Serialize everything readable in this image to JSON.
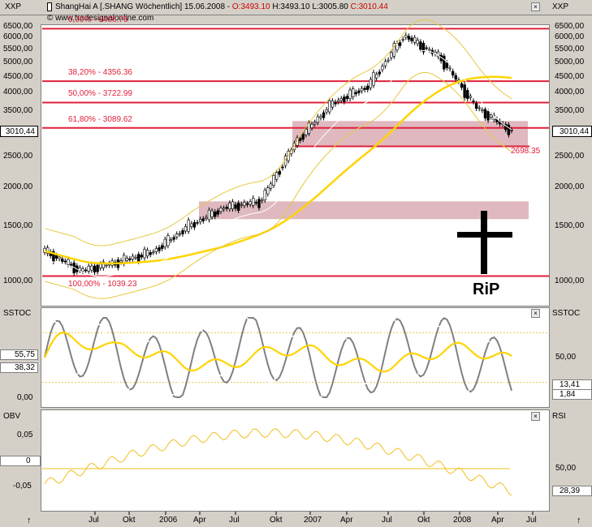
{
  "header": {
    "symbol": "XXP",
    "title_prefix": "ShangHai A [.SHANG  Wöchentlich] 15.06.2008 - ",
    "open": "O:3493.10",
    "high": "H:3493.10",
    "low": "L:3005.80",
    "close": "C:3010.44",
    "url": "www.tradesignalonline.com",
    "right_symbol": "XXP"
  },
  "colors": {
    "background": "#ffffff",
    "panel_frame": "#d4d0c8",
    "fib_line": "#e0203a",
    "zone_fill": "#c98a94",
    "ma_line": "#ffd400",
    "band_line": "#e8c840",
    "candle_up": "#ffffff",
    "candle_down": "#000000",
    "sstoc_gray": "#808080",
    "sstoc_white": "#ffffff",
    "obv_line": "#f0c020",
    "price_badge": "#ffffff"
  },
  "price_panel": {
    "y_ticks": [
      "6500,00",
      "6000,00",
      "5500,00",
      "5000,00",
      "4500,00",
      "4000,00",
      "3500,00",
      "3000,00",
      "2500,00",
      "2000,00",
      "1500,00",
      "1000,00"
    ],
    "current_price_left": "3010,44",
    "current_price_right": "3010,44",
    "fib_levels": [
      {
        "label": "0,00% - 6406.76",
        "value": 6406.76
      },
      {
        "label": "38,20% - 4356.36",
        "value": 4356.36
      },
      {
        "label": "50,00% - 3722.99",
        "value": 3722.99
      },
      {
        "label": "61,80% - 3089.62",
        "value": 3089.62
      },
      {
        "label": "100,00% - 1039.23",
        "value": 1039.23
      }
    ],
    "support_label": "2698.35",
    "support_value": 2698.35,
    "rip_text": "RiP",
    "cross_icon": "cross-icon"
  },
  "sstoc_panel": {
    "label_left": "SSTOC",
    "label_right": "SSTOC",
    "y_ticks_left": [
      "55,75",
      "38,32",
      "0,00"
    ],
    "y_ticks_right": [
      "50,00"
    ],
    "value_right_1": "13,41",
    "value_right_2": "1,84"
  },
  "obv_panel": {
    "label_left": "OBV",
    "label_right": "RSI",
    "y_ticks_left": [
      "0,05",
      "0",
      "-0,05"
    ],
    "y_ticks_right": [
      "50,00"
    ],
    "value_right": "28,39"
  },
  "x_axis": {
    "labels": [
      "Jul",
      "Okt",
      "2006",
      "Apr",
      "Jul",
      "Okt",
      "2007",
      "Apr",
      "Jul",
      "Okt",
      "2008",
      "Apr",
      "Jul"
    ]
  },
  "chart_data": {
    "type": "line",
    "title": "ShangHai A [.SHANG  Wöchentlich] 15.06.2008",
    "xlabel": "",
    "ylabel": "",
    "ylim": [
      950,
      7000
    ],
    "log_scale": true,
    "x": [
      "2005-04",
      "2005-07",
      "2005-10",
      "2006-01",
      "2006-04",
      "2006-07",
      "2006-10",
      "2007-01",
      "2007-04",
      "2007-07",
      "2007-10",
      "2008-01",
      "2008-04",
      "2008-06"
    ],
    "series": [
      {
        "name": "ShangHai A",
        "values": [
          1250,
          1080,
          1150,
          1240,
          1500,
          1720,
          1800,
          2800,
          3700,
          4200,
          6100,
          5200,
          3600,
          3010
        ]
      }
    ],
    "fib_levels": [
      6406.76,
      4356.36,
      3722.99,
      3089.62,
      1039.23
    ],
    "support": 2698.35,
    "ohlc_last": {
      "open": 3493.1,
      "high": 3493.1,
      "low": 3005.8,
      "close": 3010.44
    },
    "sstoc_last": [
      13.41,
      1.84
    ],
    "rsi_last": 28.39
  }
}
